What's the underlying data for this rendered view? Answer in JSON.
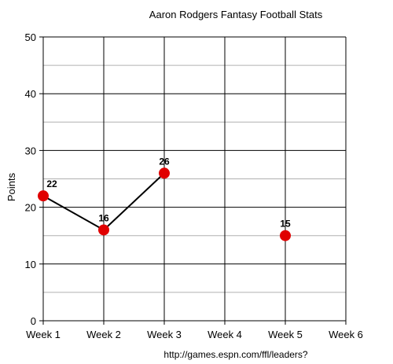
{
  "chart_data": {
    "type": "line",
    "title": "Aaron Rodgers Fantasy Football Stats",
    "ylabel": "Points",
    "xlabel": "",
    "source": "http://games.espn.com/ffl/leaders?",
    "categories": [
      "Week 1",
      "Week 2",
      "Week 3",
      "Week 4",
      "Week 5",
      "Week 6"
    ],
    "ylim": [
      0,
      50
    ],
    "yticks": [
      0,
      10,
      20,
      30,
      40,
      50
    ],
    "grid": true,
    "legend": "none",
    "series": [
      {
        "values": [
          22,
          16,
          26,
          null,
          15,
          null
        ],
        "labels": [
          "22",
          "16",
          "26",
          "",
          "15",
          ""
        ],
        "color": "#e00000",
        "line_color": "#000000"
      }
    ]
  }
}
